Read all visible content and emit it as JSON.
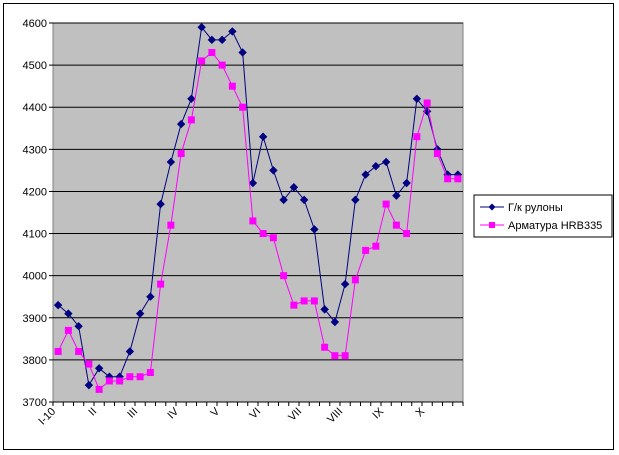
{
  "chart_data": {
    "type": "line",
    "title": "",
    "xlabel": "",
    "ylabel": "",
    "ylim": [
      3700,
      4600
    ],
    "yticks": [
      3700,
      3800,
      3900,
      4000,
      4100,
      4200,
      4300,
      4400,
      4500,
      4600
    ],
    "x_category_labels": [
      "I-10",
      "II",
      "III",
      "IV",
      "V",
      "VI",
      "VII",
      "VIII",
      "IX",
      "X"
    ],
    "legend_position": "right",
    "grid": true,
    "plot_background": "#c0c0c0",
    "series": [
      {
        "name": "Г/к рулоны",
        "color": "#000080",
        "marker": "diamond",
        "values": [
          3930,
          3910,
          3880,
          3740,
          3780,
          3760,
          3760,
          3820,
          3910,
          3950,
          4170,
          4270,
          4360,
          4420,
          4590,
          4560,
          4560,
          4580,
          4530,
          4220,
          4330,
          4250,
          4180,
          4210,
          4180,
          4110,
          3920,
          3890,
          3980,
          4180,
          4240,
          4260,
          4270,
          4190,
          4220,
          4420,
          4390,
          4300,
          4240,
          4240
        ]
      },
      {
        "name": "Арматура HRB335",
        "color": "#ff00ff",
        "marker": "square",
        "values": [
          3820,
          3870,
          3820,
          3790,
          3730,
          3750,
          3750,
          3760,
          3760,
          3770,
          3980,
          4120,
          4290,
          4370,
          4510,
          4530,
          4500,
          4450,
          4400,
          4130,
          4100,
          4090,
          4000,
          3930,
          3940,
          3940,
          3830,
          3810,
          3810,
          3990,
          4060,
          4070,
          4170,
          4120,
          4100,
          4330,
          4410,
          4290,
          4230,
          4230
        ]
      }
    ]
  }
}
